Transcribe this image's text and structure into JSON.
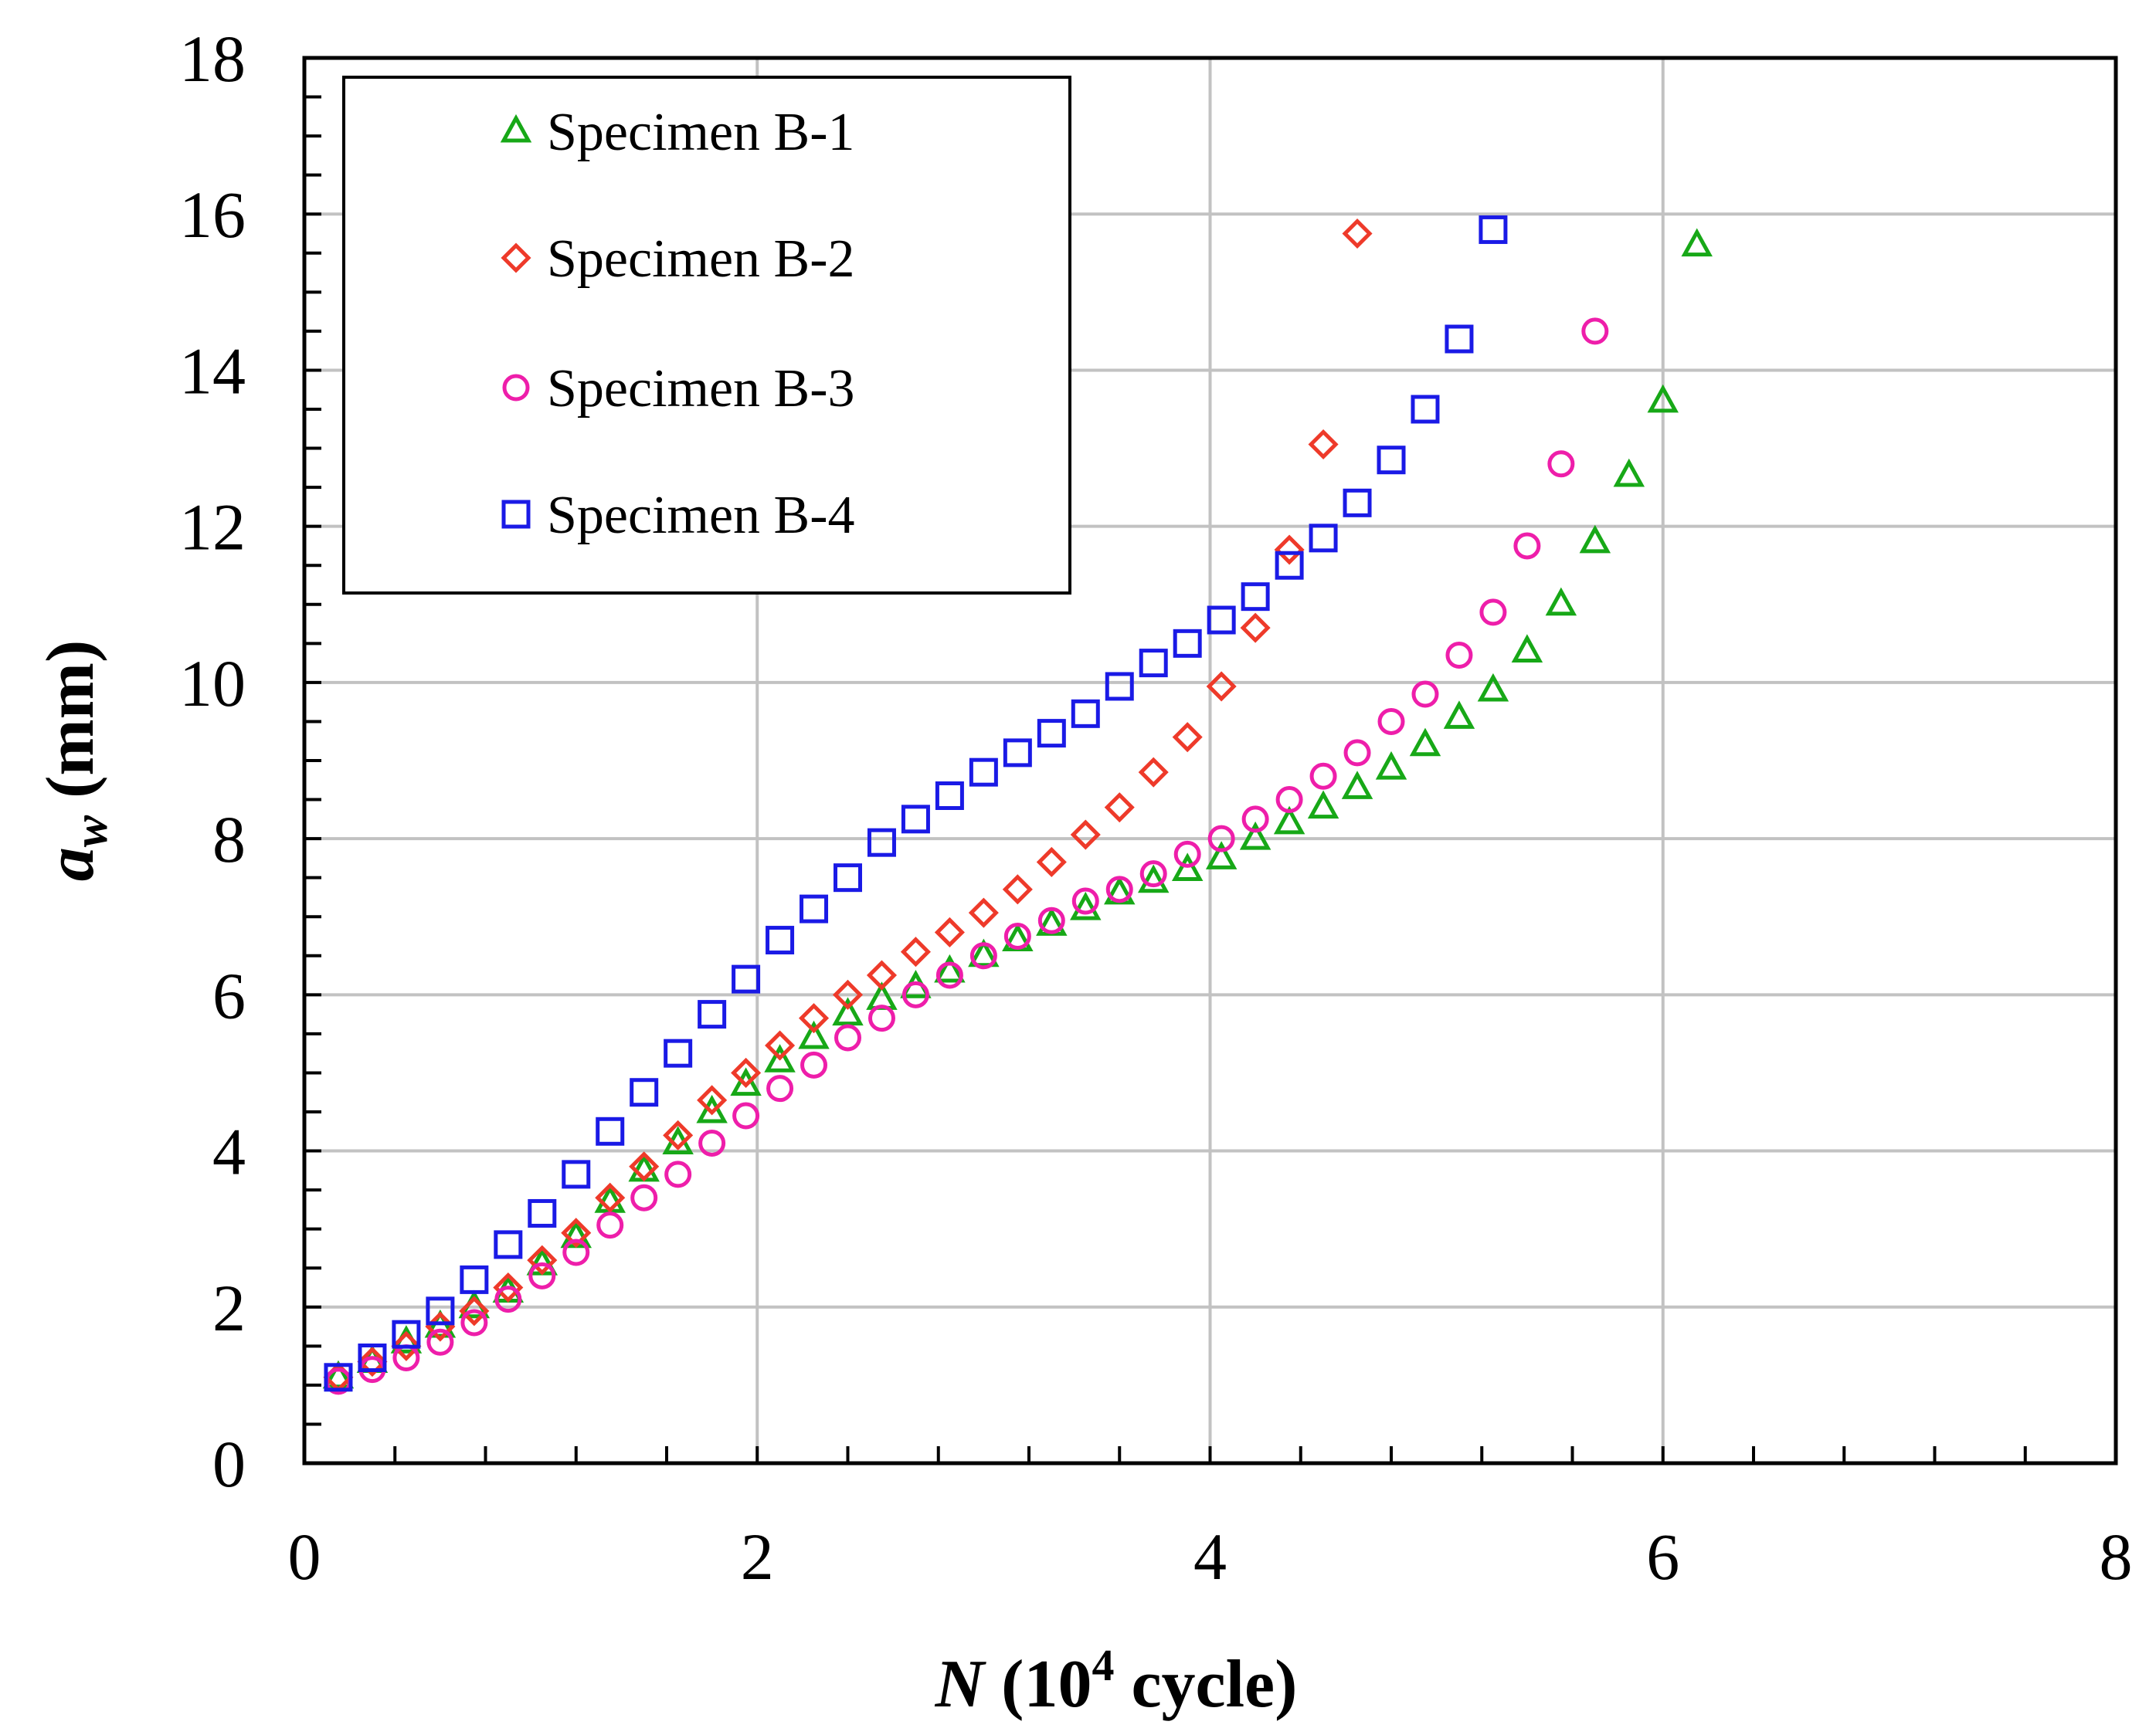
{
  "chart_data": {
    "type": "scatter",
    "title": "",
    "xlabel": {
      "var": "N",
      "pre": " (10",
      "sup": "4",
      "post": " cycle)"
    },
    "ylabel": {
      "var": "a",
      "sub": "w",
      "post": " (mm)"
    },
    "xlim": [
      0,
      8
    ],
    "ylim": [
      0,
      18
    ],
    "xticks": [
      "0",
      "2",
      "4",
      "6",
      "8"
    ],
    "yticks": [
      "0",
      "2",
      "4",
      "6",
      "8",
      "10",
      "12",
      "14",
      "16",
      "18"
    ],
    "grid": true,
    "legend_position": "top-left",
    "series": [
      {
        "name": "Specimen B-1",
        "marker": "triangle",
        "color": "#17a817",
        "x": [
          0.15,
          0.3,
          0.45,
          0.6,
          0.75,
          0.9,
          1.05,
          1.2,
          1.35,
          1.5,
          1.65,
          1.8,
          1.95,
          2.1,
          2.25,
          2.4,
          2.55,
          2.7,
          2.85,
          3.0,
          3.15,
          3.3,
          3.45,
          3.6,
          3.75,
          3.9,
          4.05,
          4.2,
          4.35,
          4.5,
          4.65,
          4.8,
          4.95,
          5.1,
          5.25,
          5.4,
          5.55,
          5.7,
          5.85,
          6.0,
          6.15
        ],
        "y": [
          1.1,
          1.3,
          1.55,
          1.75,
          2.0,
          2.2,
          2.55,
          2.9,
          3.35,
          3.75,
          4.1,
          4.5,
          4.85,
          5.15,
          5.45,
          5.75,
          5.95,
          6.1,
          6.3,
          6.5,
          6.7,
          6.9,
          7.1,
          7.3,
          7.45,
          7.6,
          7.75,
          8.0,
          8.2,
          8.4,
          8.65,
          8.9,
          9.2,
          9.55,
          9.9,
          10.4,
          11.0,
          11.8,
          12.65,
          13.6,
          15.6
        ]
      },
      {
        "name": "Specimen B-2",
        "marker": "diamond",
        "color": "#ee3a2a",
        "x": [
          0.15,
          0.3,
          0.45,
          0.6,
          0.75,
          0.9,
          1.05,
          1.2,
          1.35,
          1.5,
          1.65,
          1.8,
          1.95,
          2.1,
          2.25,
          2.4,
          2.55,
          2.7,
          2.85,
          3.0,
          3.15,
          3.3,
          3.45,
          3.6,
          3.75,
          3.9,
          4.05,
          4.2,
          4.35,
          4.5,
          4.65
        ],
        "y": [
          1.1,
          1.3,
          1.5,
          1.75,
          1.95,
          2.25,
          2.6,
          2.95,
          3.4,
          3.8,
          4.2,
          4.65,
          5.0,
          5.35,
          5.7,
          6.0,
          6.25,
          6.55,
          6.8,
          7.05,
          7.35,
          7.7,
          8.05,
          8.4,
          8.85,
          9.3,
          9.95,
          10.7,
          11.7,
          13.05,
          15.75
        ]
      },
      {
        "name": "Specimen B-3",
        "marker": "circle",
        "color": "#ee1eaa",
        "x": [
          0.15,
          0.3,
          0.45,
          0.6,
          0.75,
          0.9,
          1.05,
          1.2,
          1.35,
          1.5,
          1.65,
          1.8,
          1.95,
          2.1,
          2.25,
          2.4,
          2.55,
          2.7,
          2.85,
          3.0,
          3.15,
          3.3,
          3.45,
          3.6,
          3.75,
          3.9,
          4.05,
          4.2,
          4.35,
          4.5,
          4.65,
          4.8,
          4.95,
          5.1,
          5.25,
          5.4,
          5.55,
          5.7
        ],
        "y": [
          1.05,
          1.2,
          1.35,
          1.55,
          1.8,
          2.1,
          2.4,
          2.7,
          3.05,
          3.4,
          3.7,
          4.1,
          4.45,
          4.8,
          5.1,
          5.45,
          5.7,
          6.0,
          6.25,
          6.5,
          6.75,
          6.95,
          7.2,
          7.35,
          7.55,
          7.8,
          8.0,
          8.25,
          8.5,
          8.8,
          9.1,
          9.5,
          9.85,
          10.35,
          10.9,
          11.75,
          12.8,
          14.5
        ]
      },
      {
        "name": "Specimen B-4",
        "marker": "square",
        "color": "#1a1ae6",
        "x": [
          0.15,
          0.3,
          0.45,
          0.6,
          0.75,
          0.9,
          1.05,
          1.2,
          1.35,
          1.5,
          1.65,
          1.8,
          1.95,
          2.1,
          2.25,
          2.4,
          2.55,
          2.7,
          2.85,
          3.0,
          3.15,
          3.3,
          3.45,
          3.6,
          3.75,
          3.9,
          4.05,
          4.2,
          4.35,
          4.5,
          4.65,
          4.8,
          4.95,
          5.1,
          5.25
        ],
        "y": [
          1.1,
          1.35,
          1.65,
          1.95,
          2.35,
          2.8,
          3.2,
          3.7,
          4.25,
          4.75,
          5.25,
          5.75,
          6.2,
          6.7,
          7.1,
          7.5,
          7.95,
          8.25,
          8.55,
          8.85,
          9.1,
          9.35,
          9.6,
          9.95,
          10.25,
          10.5,
          10.8,
          11.1,
          11.5,
          11.85,
          12.3,
          12.85,
          13.5,
          14.4,
          15.8
        ]
      }
    ]
  }
}
